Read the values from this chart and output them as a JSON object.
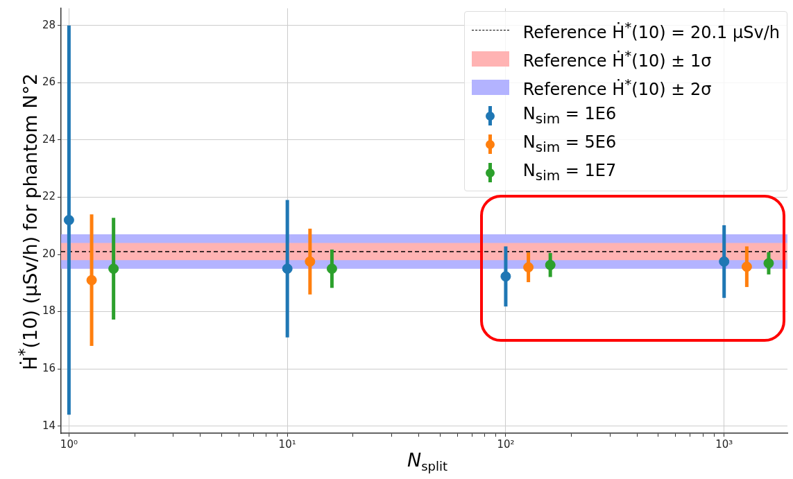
{
  "chart_data": {
    "type": "scatter",
    "xlabel": "N$_{split}$",
    "ylabel": "Ḣ$^{*}$(10) (μSv/h) for phantom N°2",
    "log": "x",
    "grid": true,
    "legend": "top right",
    "marker": "circle",
    "xlim": [
      0.92,
      1950
    ],
    "ylim": [
      13.75,
      28.6
    ],
    "xticks": [
      {
        "value": 1,
        "label": "10⁰"
      },
      {
        "value": 2,
        "label": null
      },
      {
        "value": 3,
        "label": null
      },
      {
        "value": 4,
        "label": null
      },
      {
        "value": 5,
        "label": null
      },
      {
        "value": 6,
        "label": null
      },
      {
        "value": 7,
        "label": null
      },
      {
        "value": 8,
        "label": null
      },
      {
        "value": 9,
        "label": null
      },
      {
        "value": 10,
        "label": "10¹"
      },
      {
        "value": 20,
        "label": null
      },
      {
        "value": 30,
        "label": null
      },
      {
        "value": 40,
        "label": null
      },
      {
        "value": 50,
        "label": null
      },
      {
        "value": 60,
        "label": null
      },
      {
        "value": 70,
        "label": null
      },
      {
        "value": 80,
        "label": null
      },
      {
        "value": 90,
        "label": null
      },
      {
        "value": 100,
        "label": "10²"
      },
      {
        "value": 200,
        "label": null
      },
      {
        "value": 300,
        "label": null
      },
      {
        "value": 400,
        "label": null
      },
      {
        "value": 500,
        "label": null
      },
      {
        "value": 600,
        "label": null
      },
      {
        "value": 700,
        "label": null
      },
      {
        "value": 800,
        "label": null
      },
      {
        "value": 900,
        "label": null
      },
      {
        "value": 1000,
        "label": "10³"
      }
    ],
    "yticks": [
      14,
      16,
      18,
      20,
      22,
      24,
      26,
      28
    ],
    "ref_lines": [
      {
        "axis": "y",
        "value": 20.1,
        "label": "Reference Ḣ$^{*}$(10) = 20.1 μSv/h",
        "color": "#000000",
        "line_style": "dashed"
      }
    ],
    "bands": [
      {
        "axis": "y",
        "from": 19.5,
        "to": 20.7,
        "label": "Reference Ḣ$^{*}$(10) ± 2σ",
        "color": "#b3b3ff"
      },
      {
        "axis": "y",
        "from": 19.8,
        "to": 20.4,
        "label": "Reference Ḣ$^{*}$(10) ± 1σ",
        "color": "#ffb3b3"
      }
    ],
    "series": [
      {
        "name": "N$_{sim}$ = 1E6",
        "color": "#1f77b4",
        "x": [
          1,
          10,
          100,
          1000
        ],
        "values": [
          21.2,
          19.5,
          19.23,
          19.75
        ],
        "errors": [
          6.8,
          2.4,
          1.05,
          1.27
        ]
      },
      {
        "name": "N$_{sim}$ = 5E6",
        "color": "#ff7f0e",
        "x": [
          1.27,
          12.7,
          127,
          1270
        ],
        "values": [
          19.1,
          19.75,
          19.55,
          19.57
        ],
        "errors": [
          2.3,
          1.15,
          0.52,
          0.71
        ]
      },
      {
        "name": "N$_{sim}$ = 1E7",
        "color": "#2ca02c",
        "x": [
          1.6,
          16,
          160,
          1600
        ],
        "values": [
          19.5,
          19.5,
          19.63,
          19.69
        ],
        "errors": [
          1.78,
          0.67,
          0.42,
          0.39
        ]
      }
    ]
  }
}
